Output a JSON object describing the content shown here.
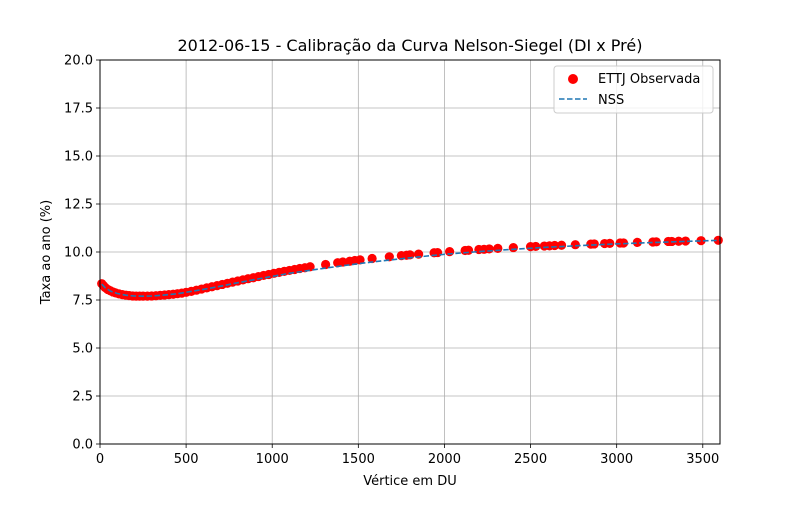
{
  "chart_data": {
    "type": "scatter",
    "title": "2012-06-15 - Calibração da Curva Nelson-Siegel (DI x Pré)",
    "xlabel": "Vértice em DU",
    "ylabel": "Taxa ao ano (%)",
    "xlim": [
      0,
      3600
    ],
    "ylim": [
      0,
      20
    ],
    "xticks": [
      0,
      500,
      1000,
      1500,
      2000,
      2500,
      3000,
      3500
    ],
    "yticks": [
      0.0,
      2.5,
      5.0,
      7.5,
      10.0,
      12.5,
      15.0,
      17.5,
      20.0
    ],
    "xtick_labels": [
      "0",
      "500",
      "1000",
      "1500",
      "2000",
      "2500",
      "3000",
      "3500"
    ],
    "ytick_labels": [
      "0.0",
      "2.5",
      "5.0",
      "7.5",
      "10.0",
      "12.5",
      "15.0",
      "17.5",
      "20.0"
    ],
    "grid": true,
    "legend_position": "top-right",
    "colors": {
      "observed": "#ff0000",
      "fit": "#1f77b4",
      "grid": "#b0b0b0"
    },
    "series": [
      {
        "name": "ETTJ Observada",
        "kind": "scatter",
        "x": [
          10,
          20,
          30,
          45,
          60,
          75,
          90,
          110,
          130,
          150,
          170,
          190,
          210,
          230,
          250,
          275,
          300,
          325,
          350,
          375,
          400,
          425,
          450,
          475,
          500,
          530,
          560,
          590,
          620,
          650,
          680,
          710,
          740,
          770,
          800,
          830,
          860,
          890,
          920,
          950,
          980,
          1010,
          1040,
          1070,
          1100,
          1130,
          1160,
          1190,
          1220,
          1310,
          1380,
          1410,
          1450,
          1480,
          1510,
          1580,
          1680,
          1750,
          1780,
          1800,
          1850,
          1940,
          1960,
          2030,
          2120,
          2140,
          2200,
          2230,
          2260,
          2310,
          2400,
          2500,
          2530,
          2580,
          2610,
          2640,
          2680,
          2760,
          2850,
          2870,
          2930,
          2960,
          3020,
          3040,
          3120,
          3210,
          3230,
          3300,
          3320,
          3360,
          3400,
          3490,
          3590
        ],
        "y": [
          8.35,
          8.25,
          8.15,
          8.05,
          7.98,
          7.92,
          7.87,
          7.82,
          7.78,
          7.75,
          7.73,
          7.71,
          7.7,
          7.7,
          7.7,
          7.7,
          7.71,
          7.72,
          7.74,
          7.76,
          7.78,
          7.8,
          7.83,
          7.86,
          7.9,
          7.95,
          8.01,
          8.07,
          8.13,
          8.19,
          8.25,
          8.31,
          8.37,
          8.43,
          8.49,
          8.55,
          8.61,
          8.66,
          8.72,
          8.78,
          8.83,
          8.89,
          8.94,
          8.99,
          9.04,
          9.09,
          9.14,
          9.18,
          9.23,
          9.35,
          9.44,
          9.48,
          9.52,
          9.56,
          9.59,
          9.66,
          9.75,
          9.81,
          9.83,
          9.85,
          9.89,
          9.96,
          9.97,
          10.02,
          10.08,
          10.09,
          10.13,
          10.14,
          10.16,
          10.19,
          10.23,
          10.28,
          10.29,
          10.31,
          10.32,
          10.34,
          10.35,
          10.38,
          10.41,
          10.42,
          10.44,
          10.45,
          10.47,
          10.47,
          10.5,
          10.52,
          10.53,
          10.55,
          10.55,
          10.56,
          10.57,
          10.59,
          10.61
        ]
      },
      {
        "name": "NSS",
        "kind": "line",
        "style": "dashed",
        "x": [
          10,
          30,
          60,
          100,
          150,
          200,
          250,
          300,
          350,
          400,
          450,
          500,
          600,
          700,
          800,
          900,
          1000,
          1100,
          1200,
          1300,
          1400,
          1500,
          1600,
          1700,
          1800,
          1900,
          2000,
          2200,
          2400,
          2600,
          2800,
          3000,
          3200,
          3400,
          3600
        ],
        "y": [
          8.33,
          8.14,
          7.97,
          7.84,
          7.75,
          7.71,
          7.7,
          7.71,
          7.74,
          7.78,
          7.83,
          7.9,
          8.05,
          8.22,
          8.4,
          8.57,
          8.73,
          8.89,
          9.02,
          9.15,
          9.27,
          9.39,
          9.5,
          9.6,
          9.7,
          9.79,
          9.88,
          10.02,
          10.14,
          10.25,
          10.34,
          10.42,
          10.49,
          10.55,
          10.61
        ]
      }
    ]
  }
}
